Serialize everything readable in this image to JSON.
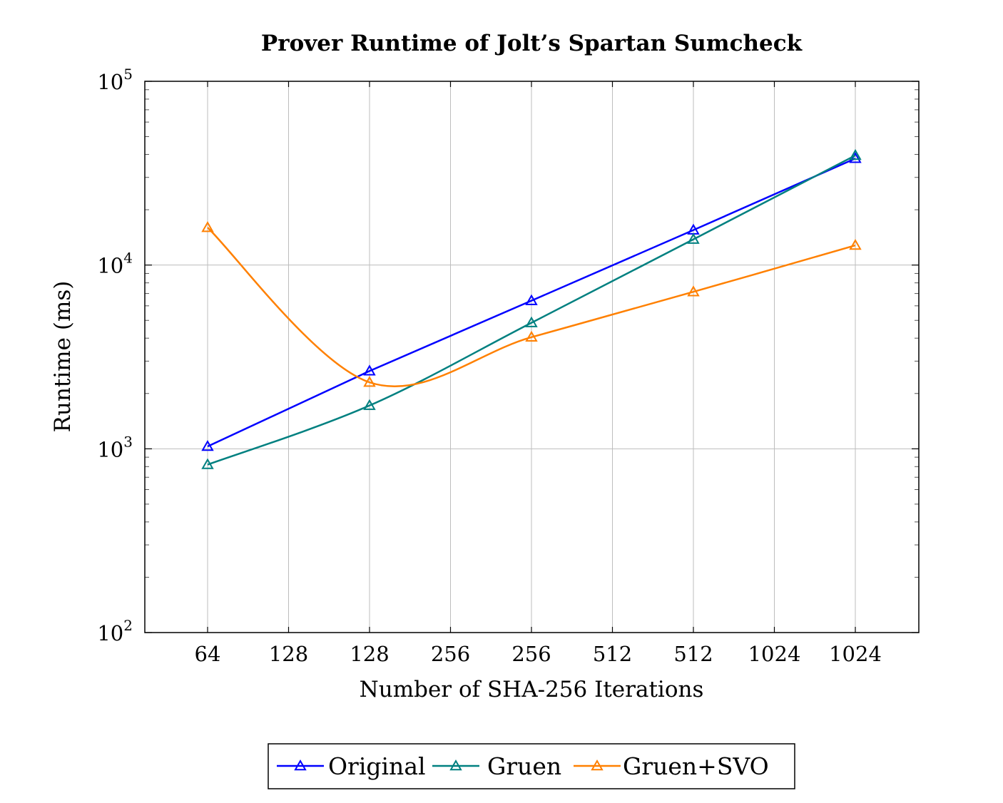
{
  "chart_data": {
    "type": "line",
    "title": "Prover Runtime of Jolt’s Spartan Sumcheck",
    "xlabel": "Number of SHA-256 Iterations",
    "ylabel": "Runtime (ms)",
    "x_ticks": [
      "64",
      "128",
      "128",
      "256",
      "256",
      "512",
      "512",
      "1024",
      "1024"
    ],
    "x": [
      64,
      128,
      256,
      512,
      1024
    ],
    "y_scale": "log",
    "ylim": [
      100,
      100000
    ],
    "y_ticks": [
      {
        "base": "10",
        "exp": "2"
      },
      {
        "base": "10",
        "exp": "3"
      },
      {
        "base": "10",
        "exp": "4"
      },
      {
        "base": "10",
        "exp": "5"
      }
    ],
    "grid": true,
    "legend_position": "bottom-center",
    "series": [
      {
        "name": "Original",
        "color": "#0000ff",
        "marker": "triangle",
        "smooth": false,
        "values": [
          1030,
          2650,
          6400,
          15500,
          38000
        ]
      },
      {
        "name": "Gruen",
        "color": "#008080",
        "marker": "triangle",
        "smooth": true,
        "values": [
          820,
          1720,
          4850,
          13800,
          39500
        ]
      },
      {
        "name": "Gruen+SVO",
        "color": "#ff8000",
        "marker": "triangle",
        "smooth": true,
        "values": [
          16000,
          2300,
          4050,
          7150,
          12800
        ]
      }
    ]
  }
}
